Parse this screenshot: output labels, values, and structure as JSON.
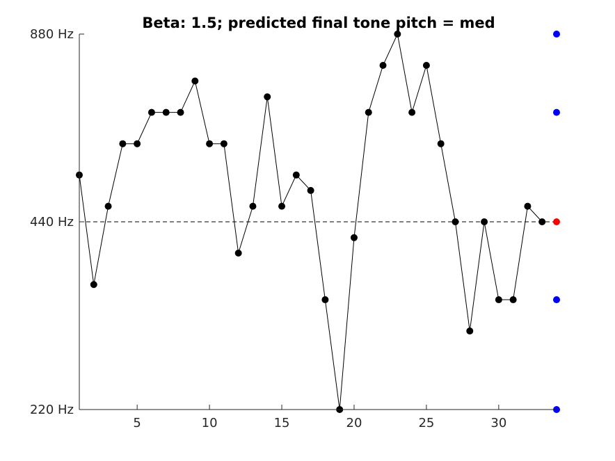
{
  "chart_data": {
    "type": "line",
    "title": "Beta: 1.5; predicted final tone pitch = med",
    "xlabel": "",
    "ylabel": "",
    "xlim": [
      1,
      34
    ],
    "ylim": [
      220,
      880
    ],
    "y_scale": "log",
    "grid": false,
    "legend": "none",
    "x_ticks": [
      {
        "value": 5,
        "label": "5"
      },
      {
        "value": 10,
        "label": "10"
      },
      {
        "value": 15,
        "label": "15"
      },
      {
        "value": 20,
        "label": "20"
      },
      {
        "value": 25,
        "label": "25"
      },
      {
        "value": 30,
        "label": "30"
      }
    ],
    "y_ticks": [
      {
        "value": 220,
        "label": "220 Hz"
      },
      {
        "value": 440,
        "label": "440 Hz"
      },
      {
        "value": 880,
        "label": "880 Hz"
      }
    ],
    "reference_line": {
      "y": 440,
      "style": "dashed",
      "color": "#000000"
    },
    "series": [
      {
        "color": "#000000",
        "x": [
          1,
          2,
          3,
          4,
          5,
          6,
          7,
          8,
          9,
          10,
          11,
          12,
          13,
          14,
          15,
          16,
          17,
          18,
          19,
          20,
          21,
          22,
          23,
          24,
          25,
          26,
          27,
          28,
          29,
          30,
          31,
          32,
          33
        ],
        "values": [
          523,
          349,
          466,
          587,
          587,
          659,
          659,
          659,
          740,
          587,
          587,
          392,
          466,
          698,
          466,
          523,
          494,
          330,
          220,
          415,
          659,
          784,
          880,
          659,
          784,
          587,
          440,
          294,
          440,
          330,
          330,
          466,
          440
        ]
      }
    ],
    "candidates": {
      "x": 34,
      "values": [
        220,
        330,
        440,
        659,
        880
      ],
      "colors": [
        "#0000ff",
        "#0000ff",
        "#ff0000",
        "#0000ff",
        "#0000ff"
      ]
    }
  }
}
